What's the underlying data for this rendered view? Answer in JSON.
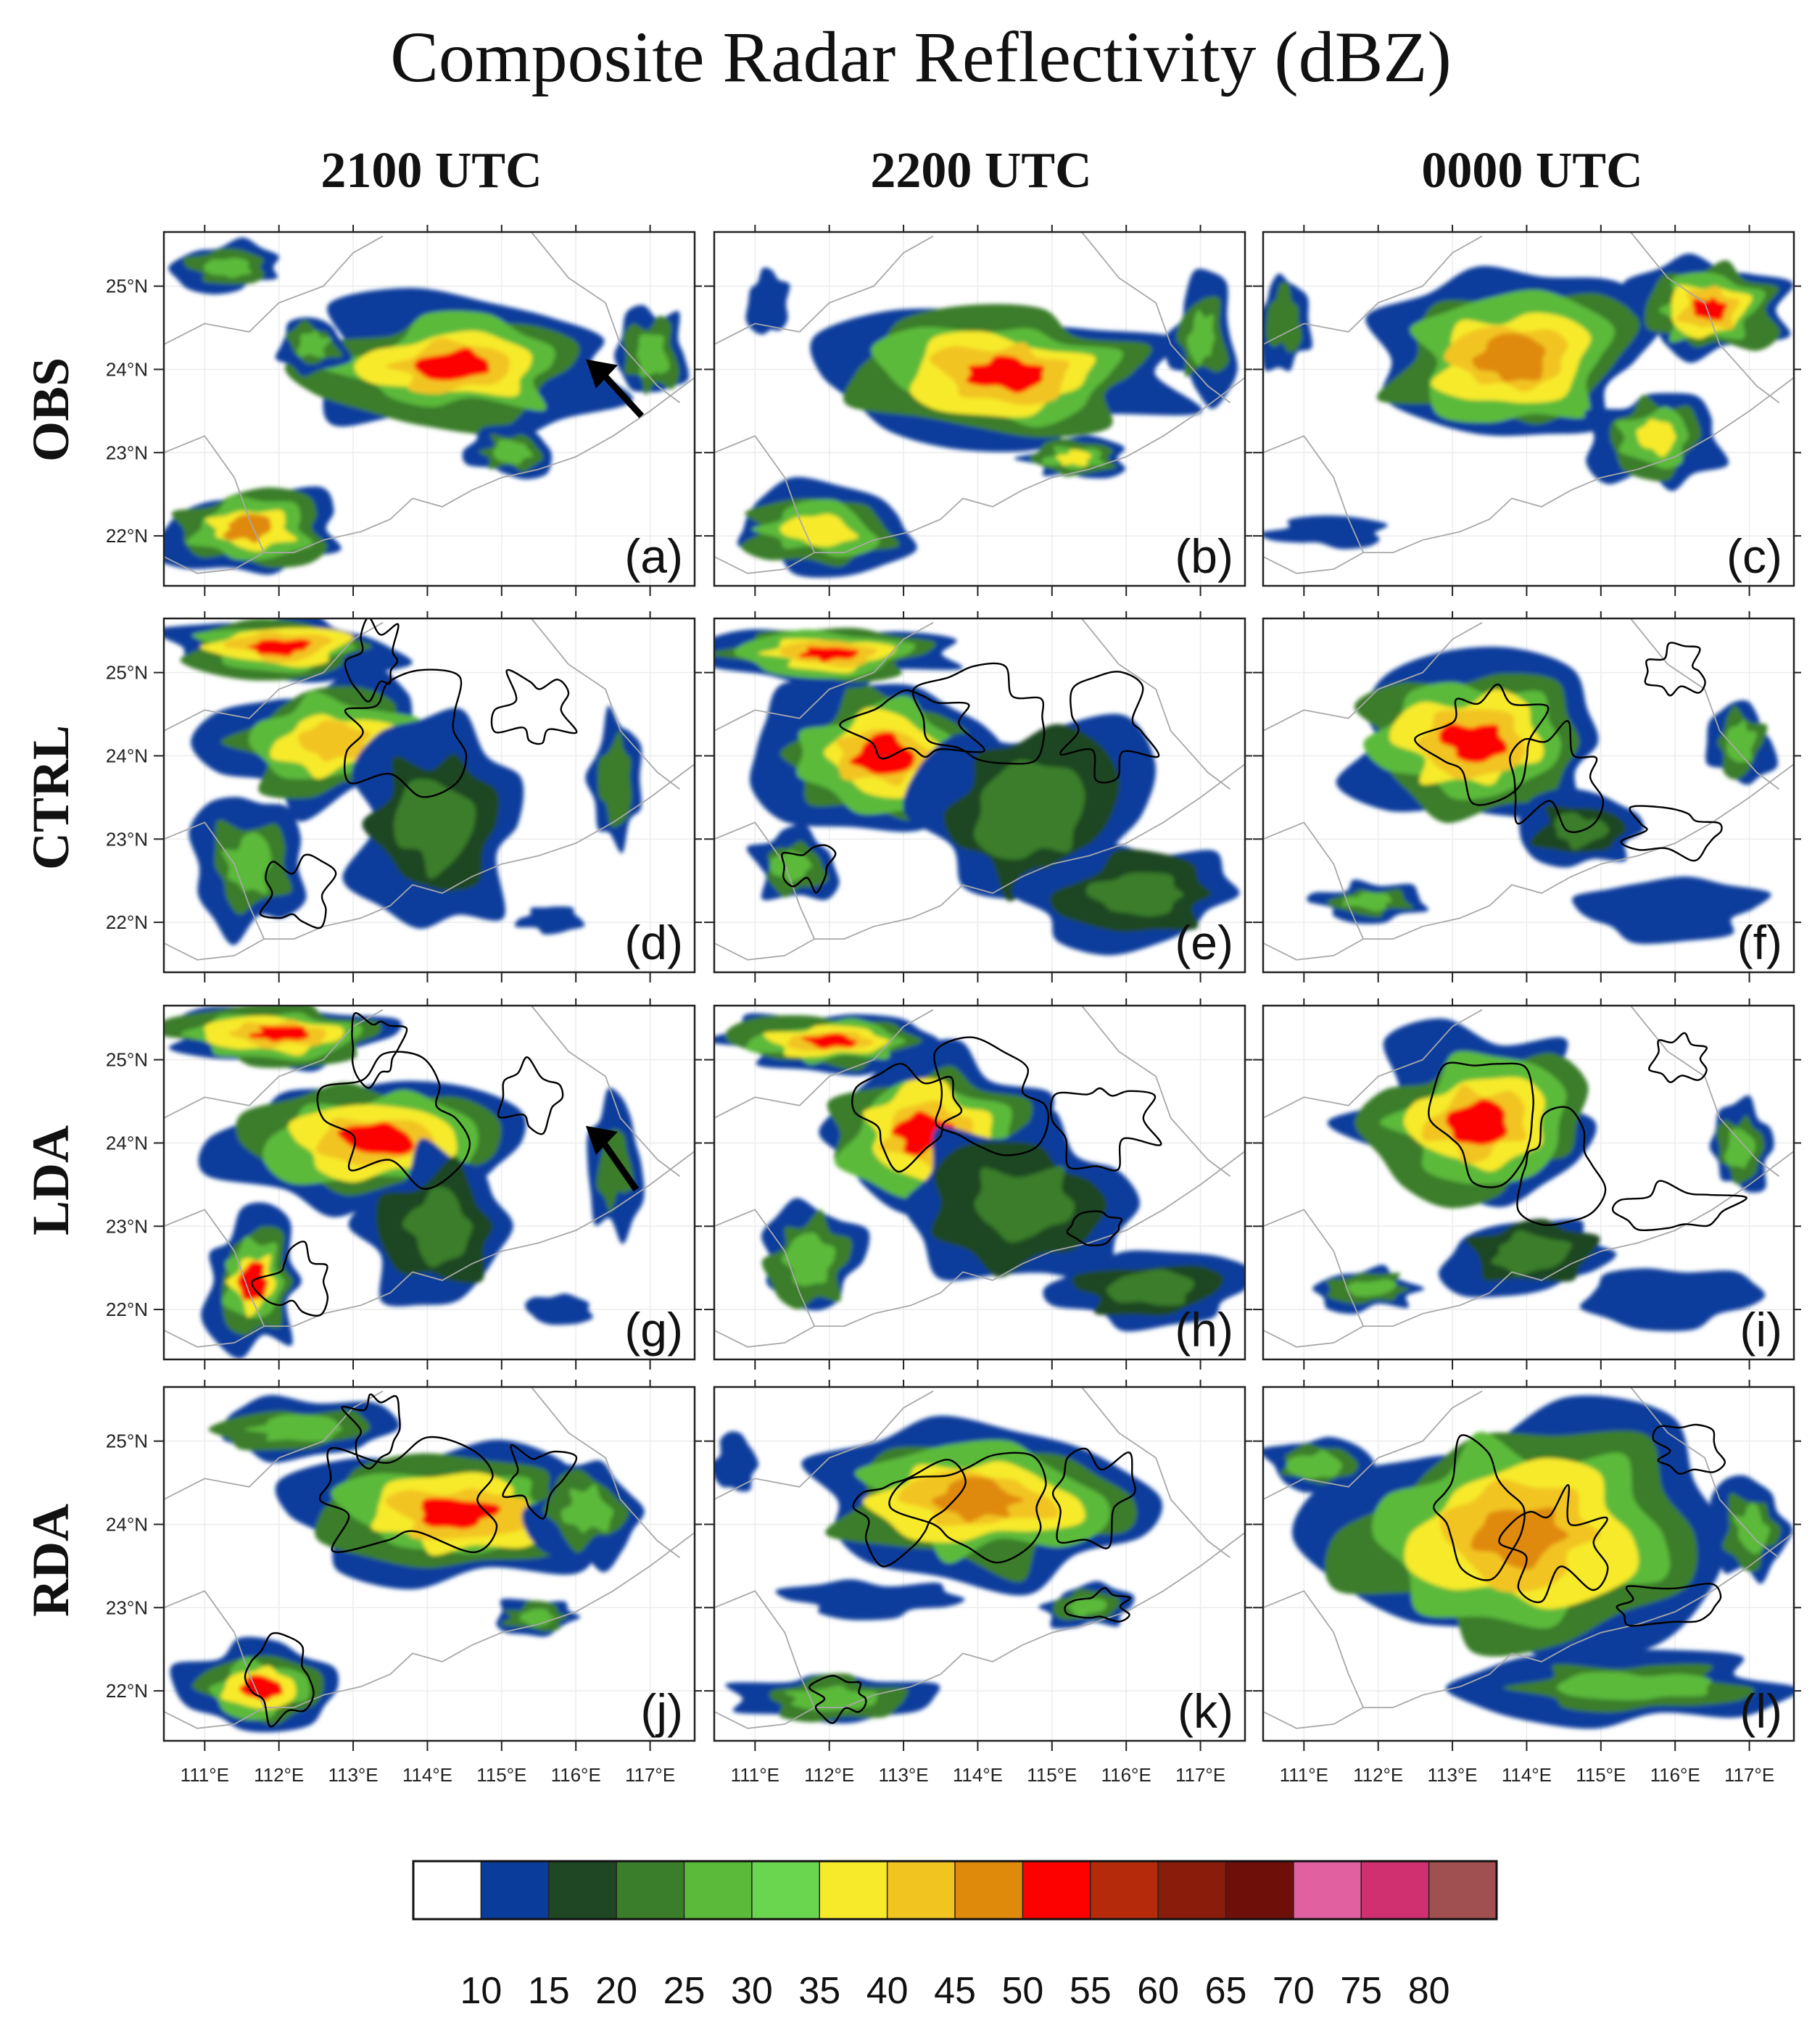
{
  "figure": {
    "title": "Composite Radar Reflectivity (dBZ)",
    "columns": [
      "2100 UTC",
      "2200 UTC",
      "0000 UTC"
    ],
    "rows": [
      "OBS",
      "CTRL",
      "LDA",
      "RDA"
    ]
  },
  "map": {
    "lon_ticks": [
      "111°E",
      "112°E",
      "113°E",
      "114°E",
      "115°E",
      "116°E",
      "117°E"
    ],
    "lat_ticks": [
      "25°N",
      "24°N",
      "23°N",
      "22°N"
    ],
    "lon_values": [
      111,
      112,
      113,
      114,
      115,
      116,
      117
    ],
    "lat_values": [
      25,
      24,
      23,
      22
    ],
    "lon_range": [
      110.45,
      117.6
    ],
    "lat_range": [
      21.4,
      25.65
    ]
  },
  "panels": [
    {
      "label": "(a)",
      "row": "OBS",
      "col": "2100 UTC"
    },
    {
      "label": "(b)",
      "row": "OBS",
      "col": "2200 UTC"
    },
    {
      "label": "(c)",
      "row": "OBS",
      "col": "0000 UTC"
    },
    {
      "label": "(d)",
      "row": "CTRL",
      "col": "2100 UTC"
    },
    {
      "label": "(e)",
      "row": "CTRL",
      "col": "2200 UTC"
    },
    {
      "label": "(f)",
      "row": "CTRL",
      "col": "0000 UTC"
    },
    {
      "label": "(g)",
      "row": "LDA",
      "col": "2100 UTC"
    },
    {
      "label": "(h)",
      "row": "LDA",
      "col": "2200 UTC"
    },
    {
      "label": "(i)",
      "row": "LDA",
      "col": "0000 UTC"
    },
    {
      "label": "(j)",
      "row": "RDA",
      "col": "2100 UTC"
    },
    {
      "label": "(k)",
      "row": "RDA",
      "col": "2200 UTC"
    },
    {
      "label": "(l)",
      "row": "RDA",
      "col": "0000 UTC"
    }
  ],
  "colorbar": {
    "labels": [
      "10",
      "15",
      "20",
      "25",
      "30",
      "35",
      "40",
      "45",
      "50",
      "55",
      "60",
      "65",
      "70",
      "75",
      "80"
    ],
    "colors": [
      "#ffffff",
      "#0a3c9c",
      "#1f4724",
      "#3a7d2a",
      "#5cba3a",
      "#6ad650",
      "#f7ea2a",
      "#f2c420",
      "#e08a0c",
      "#fd0000",
      "#b52a0a",
      "#8a1c0c",
      "#6e0f0a",
      "#e060a0",
      "#d03070",
      "#a05050"
    ]
  },
  "colors": {
    "blue": "#0a3c9c",
    "darkgreen": "#1f4724",
    "green": "#3a7d2a",
    "lightgreen": "#5cba3a",
    "brightgreen": "#6ad650",
    "yellow": "#f7ea2a",
    "gold": "#f2c420",
    "orange": "#e08a0c",
    "red": "#fd0000",
    "coast": "#a8a8a8",
    "contour": "#000000"
  }
}
